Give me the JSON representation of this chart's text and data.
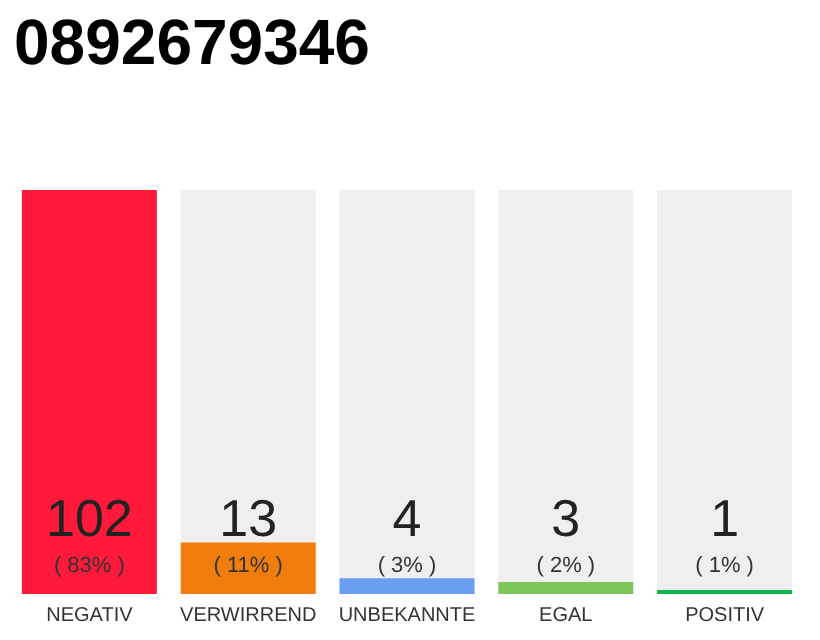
{
  "chart_data": {
    "type": "bar",
    "title": "0892679346",
    "categories": [
      "NEGATIV",
      "VERWIRREND",
      "UNBEKANNTE",
      "EGAL",
      "POSITIV"
    ],
    "values": [
      102,
      13,
      4,
      3,
      1
    ],
    "colors": [
      "#ff1a3c",
      "#f07d0c",
      "#6a9ef0",
      "#7dc75a",
      "#0db84a"
    ],
    "annotations": [
      "( 83% )",
      "( 11% )",
      "( 3% )",
      "( 2% )",
      "( 1% )"
    ],
    "data_labels": true
  }
}
